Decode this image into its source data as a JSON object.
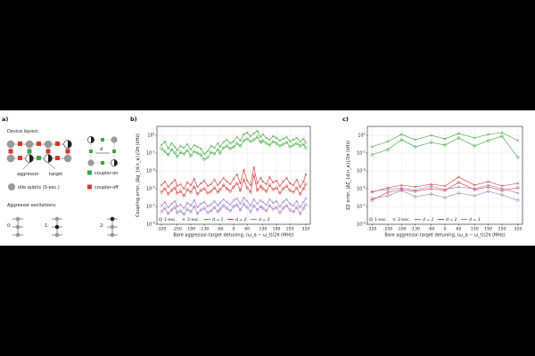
{
  "panel_a": {
    "label": "a)",
    "device_layout": "Device layout:",
    "d_label": "d",
    "aggressor": "aggressor",
    "target": "target",
    "coupler_on": "coupler-on",
    "coupler_off": "coupler-off",
    "idle_qubits": "idle qubits (0-exc.)",
    "aggressor_excitations": "Aggressor excitations:",
    "exc_0": "0:",
    "exc_1": "1:",
    "exc_2": "2:"
  },
  "colors": {
    "d1": "#2ca02c",
    "d2": "#d62728",
    "d3": "#9467bd"
  },
  "chart_data": [
    {
      "panel": "b)",
      "type": "line",
      "xlabel": "Bare aggressor-target detuning, (ω_a − ω_t)/2π (MHz)",
      "ylabel": "Coupling error, |Δg_{d,n_a}|/2π (kHz)",
      "yscale": "log",
      "xlim": [
        -340,
        340
      ],
      "ylim_exp": [
        -9,
        2
      ],
      "xticks": [
        -320,
        -250,
        -190,
        -130,
        -60,
        0,
        60,
        130,
        190,
        250,
        320
      ],
      "yticks": [
        "10^1",
        "10^-1",
        "10^-3",
        "10^-5",
        "10^-7",
        "10^-9"
      ],
      "legend": {
        "exc1": "1-exc.",
        "exc2": "2-exc.",
        "d1": "d = 1",
        "d2": "d = 2",
        "d3": "d = 3",
        "placement": "bottom"
      },
      "x": [
        -320,
        -305,
        -290,
        -275,
        -260,
        -250,
        -235,
        -220,
        -205,
        -190,
        -175,
        -160,
        -145,
        -130,
        -115,
        -100,
        -85,
        -70,
        -60,
        -45,
        -30,
        -15,
        0,
        15,
        30,
        45,
        60,
        75,
        90,
        105,
        120,
        130,
        145,
        160,
        175,
        190,
        205,
        220,
        235,
        250,
        265,
        280,
        295,
        310,
        320
      ],
      "series": [
        {
          "d": 1,
          "excitation": 1,
          "marker": "circle",
          "color": "#2ca02c",
          "log10": [
            -0.5,
            -0.8,
            -1.2,
            -0.6,
            -1.0,
            -1.4,
            -0.9,
            -1.1,
            -0.7,
            -1.3,
            -0.8,
            -1.0,
            -1.2,
            -1.7,
            -1.5,
            -0.9,
            -1.1,
            -0.6,
            -1.0,
            -0.4,
            -0.2,
            -0.5,
            -0.3,
            0.1,
            -0.2,
            0.4,
            0.6,
            0.3,
            0.5,
            0.8,
            0.2,
            0.4,
            0.1,
            -0.1,
            0.3,
            0.1,
            -0.2,
            0.0,
            0.2,
            -0.3,
            -0.1,
            0.1,
            -0.2,
            0.0,
            -0.4
          ]
        },
        {
          "d": 1,
          "excitation": 2,
          "marker": "cross",
          "color": "#2ca02c",
          "log10": [
            -0.1,
            0.3,
            -0.5,
            0.1,
            -0.3,
            -0.7,
            -0.2,
            -0.4,
            0.0,
            -0.6,
            -0.1,
            -0.3,
            -0.5,
            -1.1,
            -0.8,
            -0.2,
            -0.4,
            0.1,
            -0.3,
            0.2,
            0.5,
            0.1,
            0.3,
            0.8,
            0.4,
            1.1,
            1.3,
            0.9,
            1.2,
            1.5,
            0.8,
            1.1,
            0.7,
            0.5,
            0.9,
            0.7,
            0.4,
            0.6,
            0.8,
            0.3,
            0.5,
            0.7,
            0.3,
            0.6,
            0.2
          ]
        },
        {
          "d": 2,
          "excitation": 1,
          "marker": "circle",
          "color": "#d62728",
          "log10": [
            -5.4,
            -5.0,
            -5.6,
            -5.2,
            -4.9,
            -5.5,
            -5.3,
            -5.8,
            -5.1,
            -5.4,
            -4.8,
            -5.6,
            -5.2,
            -5.0,
            -5.5,
            -5.3,
            -4.9,
            -5.4,
            -5.1,
            -4.6,
            -5.0,
            -5.3,
            -4.8,
            -4.4,
            -5.2,
            -4.0,
            -4.9,
            -5.4,
            -3.5,
            -5.2,
            -4.7,
            -5.0,
            -5.3,
            -4.6,
            -5.1,
            -4.9,
            -5.5,
            -5.0,
            -4.7,
            -5.2,
            -5.4,
            -4.9,
            -5.6,
            -5.0,
            -4.5
          ]
        },
        {
          "d": 2,
          "excitation": 2,
          "marker": "cross",
          "color": "#d62728",
          "log10": [
            -4.6,
            -4.2,
            -4.8,
            -4.4,
            -4.0,
            -4.7,
            -4.5,
            -5.0,
            -4.3,
            -4.6,
            -3.9,
            -4.8,
            -4.4,
            -4.1,
            -4.7,
            -4.5,
            -4.0,
            -4.6,
            -4.3,
            -3.8,
            -4.2,
            -4.5,
            -3.9,
            -3.4,
            -4.4,
            -2.9,
            -4.1,
            -4.6,
            -2.6,
            -4.4,
            -3.8,
            -4.2,
            -4.5,
            -3.7,
            -4.3,
            -4.1,
            -4.7,
            -4.2,
            -3.8,
            -4.4,
            -4.6,
            -4.0,
            -4.8,
            -4.2,
            -3.4
          ]
        },
        {
          "d": 3,
          "excitation": 1,
          "marker": "circle",
          "color": "#9467bd",
          "log10": [
            -7.6,
            -7.2,
            -7.8,
            -7.4,
            -7.1,
            -7.7,
            -7.5,
            -7.9,
            -7.3,
            -7.6,
            -7.0,
            -7.8,
            -7.4,
            -7.2,
            -7.7,
            -7.5,
            -7.1,
            -7.6,
            -7.3,
            -6.9,
            -7.2,
            -7.5,
            -7.0,
            -6.8,
            -7.4,
            -6.7,
            -7.1,
            -7.6,
            -6.9,
            -7.4,
            -7.0,
            -7.2,
            -7.5,
            -6.9,
            -7.3,
            -7.1,
            -7.7,
            -7.2,
            -6.9,
            -7.4,
            -7.6,
            -7.1,
            -7.8,
            -7.2,
            -6.8
          ]
        },
        {
          "d": 3,
          "excitation": 2,
          "marker": "cross",
          "color": "#9467bd",
          "log10": [
            -6.9,
            -6.5,
            -7.1,
            -6.7,
            -6.4,
            -7.0,
            -6.8,
            -7.2,
            -6.6,
            -6.9,
            -6.3,
            -7.1,
            -6.7,
            -6.5,
            -7.0,
            -6.8,
            -6.4,
            -6.9,
            -6.6,
            -6.2,
            -6.5,
            -6.8,
            -6.3,
            -6.1,
            -6.7,
            -6.0,
            -6.4,
            -6.9,
            -6.2,
            -6.7,
            -6.3,
            -6.5,
            -6.8,
            -6.2,
            -6.6,
            -6.4,
            -7.0,
            -6.5,
            -6.2,
            -6.7,
            -6.9,
            -6.4,
            -7.1,
            -6.5,
            -6.1
          ]
        }
      ]
    },
    {
      "panel": "c)",
      "type": "line",
      "xlabel": "Bare aggressor-target detuning, (ω_a − ω_t)/2π (MHz)",
      "ylabel": "ZZ error, |Δζ_{d,n_a}|/2π (kHz)",
      "yscale": "log",
      "xlim": [
        -340,
        340
      ],
      "ylim_exp": [
        -9,
        2
      ],
      "xticks": [
        -320,
        -250,
        -190,
        -130,
        -60,
        0,
        60,
        130,
        190,
        250,
        320
      ],
      "yticks": [
        "10^1",
        "10^-1",
        "10^-3",
        "10^-5",
        "10^-7",
        "10^-9"
      ],
      "legend": {
        "exc1": "1-exc.",
        "exc2": "2-exc.",
        "d1": "d = 1",
        "d2": "d = 2",
        "d3": "d = 3",
        "placement": "bottom"
      },
      "x": [
        -320,
        -250,
        -190,
        -130,
        -60,
        0,
        60,
        130,
        190,
        250,
        320
      ],
      "series": [
        {
          "d": 1,
          "excitation": 1,
          "marker": "circle",
          "color": "#2ca02c",
          "log10": [
            -1.2,
            -0.6,
            0.5,
            -0.3,
            0.2,
            -0.1,
            0.7,
            -0.2,
            0.4,
            0.9,
            -1.5
          ]
        },
        {
          "d": 1,
          "excitation": 2,
          "marker": "cross",
          "color": "#2ca02c",
          "log10": [
            -0.3,
            0.3,
            1.1,
            0.5,
            1.0,
            0.6,
            1.2,
            0.7,
            1.1,
            1.3,
            0.4
          ]
        },
        {
          "d": 2,
          "excitation": 1,
          "marker": "circle",
          "color": "#d62728",
          "log10": [
            -6.3,
            -5.4,
            -5.1,
            -5.3,
            -5.0,
            -5.2,
            -4.3,
            -5.1,
            -4.8,
            -5.2,
            -4.9
          ]
        },
        {
          "d": 2,
          "excitation": 2,
          "marker": "cross",
          "color": "#d62728",
          "log10": [
            -5.4,
            -4.9,
            -4.6,
            -4.8,
            -4.5,
            -4.7,
            -3.7,
            -4.6,
            -4.2,
            -4.7,
            -4.4
          ]
        },
        {
          "d": 3,
          "excitation": 1,
          "marker": "circle",
          "color": "#9467bd",
          "log10": [
            -6.1,
            -5.8,
            -5.2,
            -5.9,
            -5.6,
            -6.0,
            -5.5,
            -5.8,
            -5.3,
            -5.7,
            -6.3
          ]
        },
        {
          "d": 3,
          "excitation": 2,
          "marker": "cross",
          "color": "#9467bd",
          "log10": [
            -5.3,
            -5.1,
            -4.9,
            -5.2,
            -4.7,
            -5.1,
            -4.8,
            -5.0,
            -4.6,
            -5.0,
            -5.5
          ]
        }
      ]
    }
  ]
}
